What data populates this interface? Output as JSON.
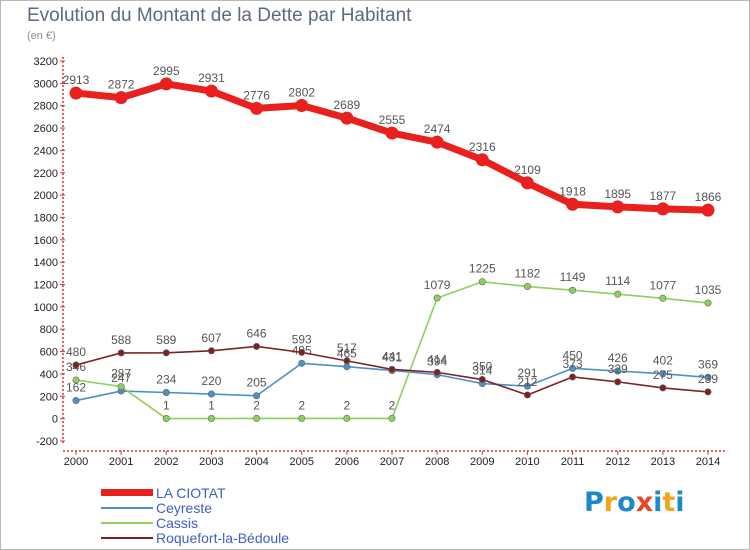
{
  "title": "Evolution du Montant de la Dette par Habitant",
  "subtitle": "(en €)",
  "logo": {
    "letters": [
      "P",
      "r",
      "o",
      "x",
      "i",
      "t",
      "i"
    ],
    "colors": [
      "#1e88c8",
      "#f7a21b",
      "#1e88c8",
      "#e54528",
      "#1e88c8",
      "#f7a21b",
      "#1e88c8"
    ]
  },
  "chart_data": {
    "type": "line",
    "x": [
      "2000",
      "2001",
      "2002",
      "2003",
      "2004",
      "2005",
      "2006",
      "2007",
      "2008",
      "2009",
      "2010",
      "2011",
      "2012",
      "2013",
      "2014"
    ],
    "ylim": [
      -200,
      3200
    ],
    "yticks": [
      "-200",
      "0",
      "200",
      "400",
      "600",
      "800",
      "1000",
      "1200",
      "1400",
      "1600",
      "1800",
      "2000",
      "2200",
      "2400",
      "2600",
      "2800",
      "3000",
      "3200"
    ],
    "grid": false,
    "legend_position": "bottom-left",
    "series": [
      {
        "name": "LA CIOTAT",
        "color": "#e8201e",
        "emphasis": true,
        "values": [
          2913,
          2872,
          2995,
          2931,
          2776,
          2802,
          2689,
          2555,
          2474,
          2316,
          2109,
          1918,
          1895,
          1877,
          1866
        ],
        "labels": [
          "2913",
          "2872",
          "2995",
          "2931",
          "2776",
          "2802",
          "2689",
          "2555",
          "2474",
          "2316",
          "2109",
          "1918",
          "1895",
          "1877",
          "1866"
        ]
      },
      {
        "name": "Ceyreste",
        "color": "#4d8fc9",
        "values": [
          162,
          247,
          234,
          220,
          205,
          495,
          465,
          431,
          394,
          314,
          291,
          450,
          426,
          402,
          369
        ],
        "labels": [
          "162",
          "247",
          "234",
          "220",
          "205",
          "495",
          "465",
          "431",
          "394",
          "314",
          "291",
          "450",
          "426",
          "402",
          "369"
        ]
      },
      {
        "name": "Cassis",
        "color": "#8ed15a",
        "values": [
          346,
          287,
          1,
          1,
          2,
          2,
          2,
          2,
          1079,
          1225,
          1182,
          1149,
          1114,
          1077,
          1035
        ],
        "labels": [
          "346",
          "287",
          "1",
          "1",
          "2",
          "2",
          "2",
          "2",
          "1079",
          "1225",
          "1182",
          "1149",
          "1114",
          "1077",
          "1035"
        ]
      },
      {
        "name": "Roquefort-la-Bédoule",
        "color": "#7a2327",
        "values": [
          480,
          588,
          589,
          607,
          646,
          593,
          517,
          441,
          414,
          350,
          212,
          373,
          329,
          275,
          239
        ],
        "labels": [
          "480",
          "588",
          "589",
          "607",
          "646",
          "593",
          "517",
          "441",
          "414",
          "350",
          "212",
          "373",
          "329",
          "275",
          "239"
        ]
      }
    ]
  }
}
